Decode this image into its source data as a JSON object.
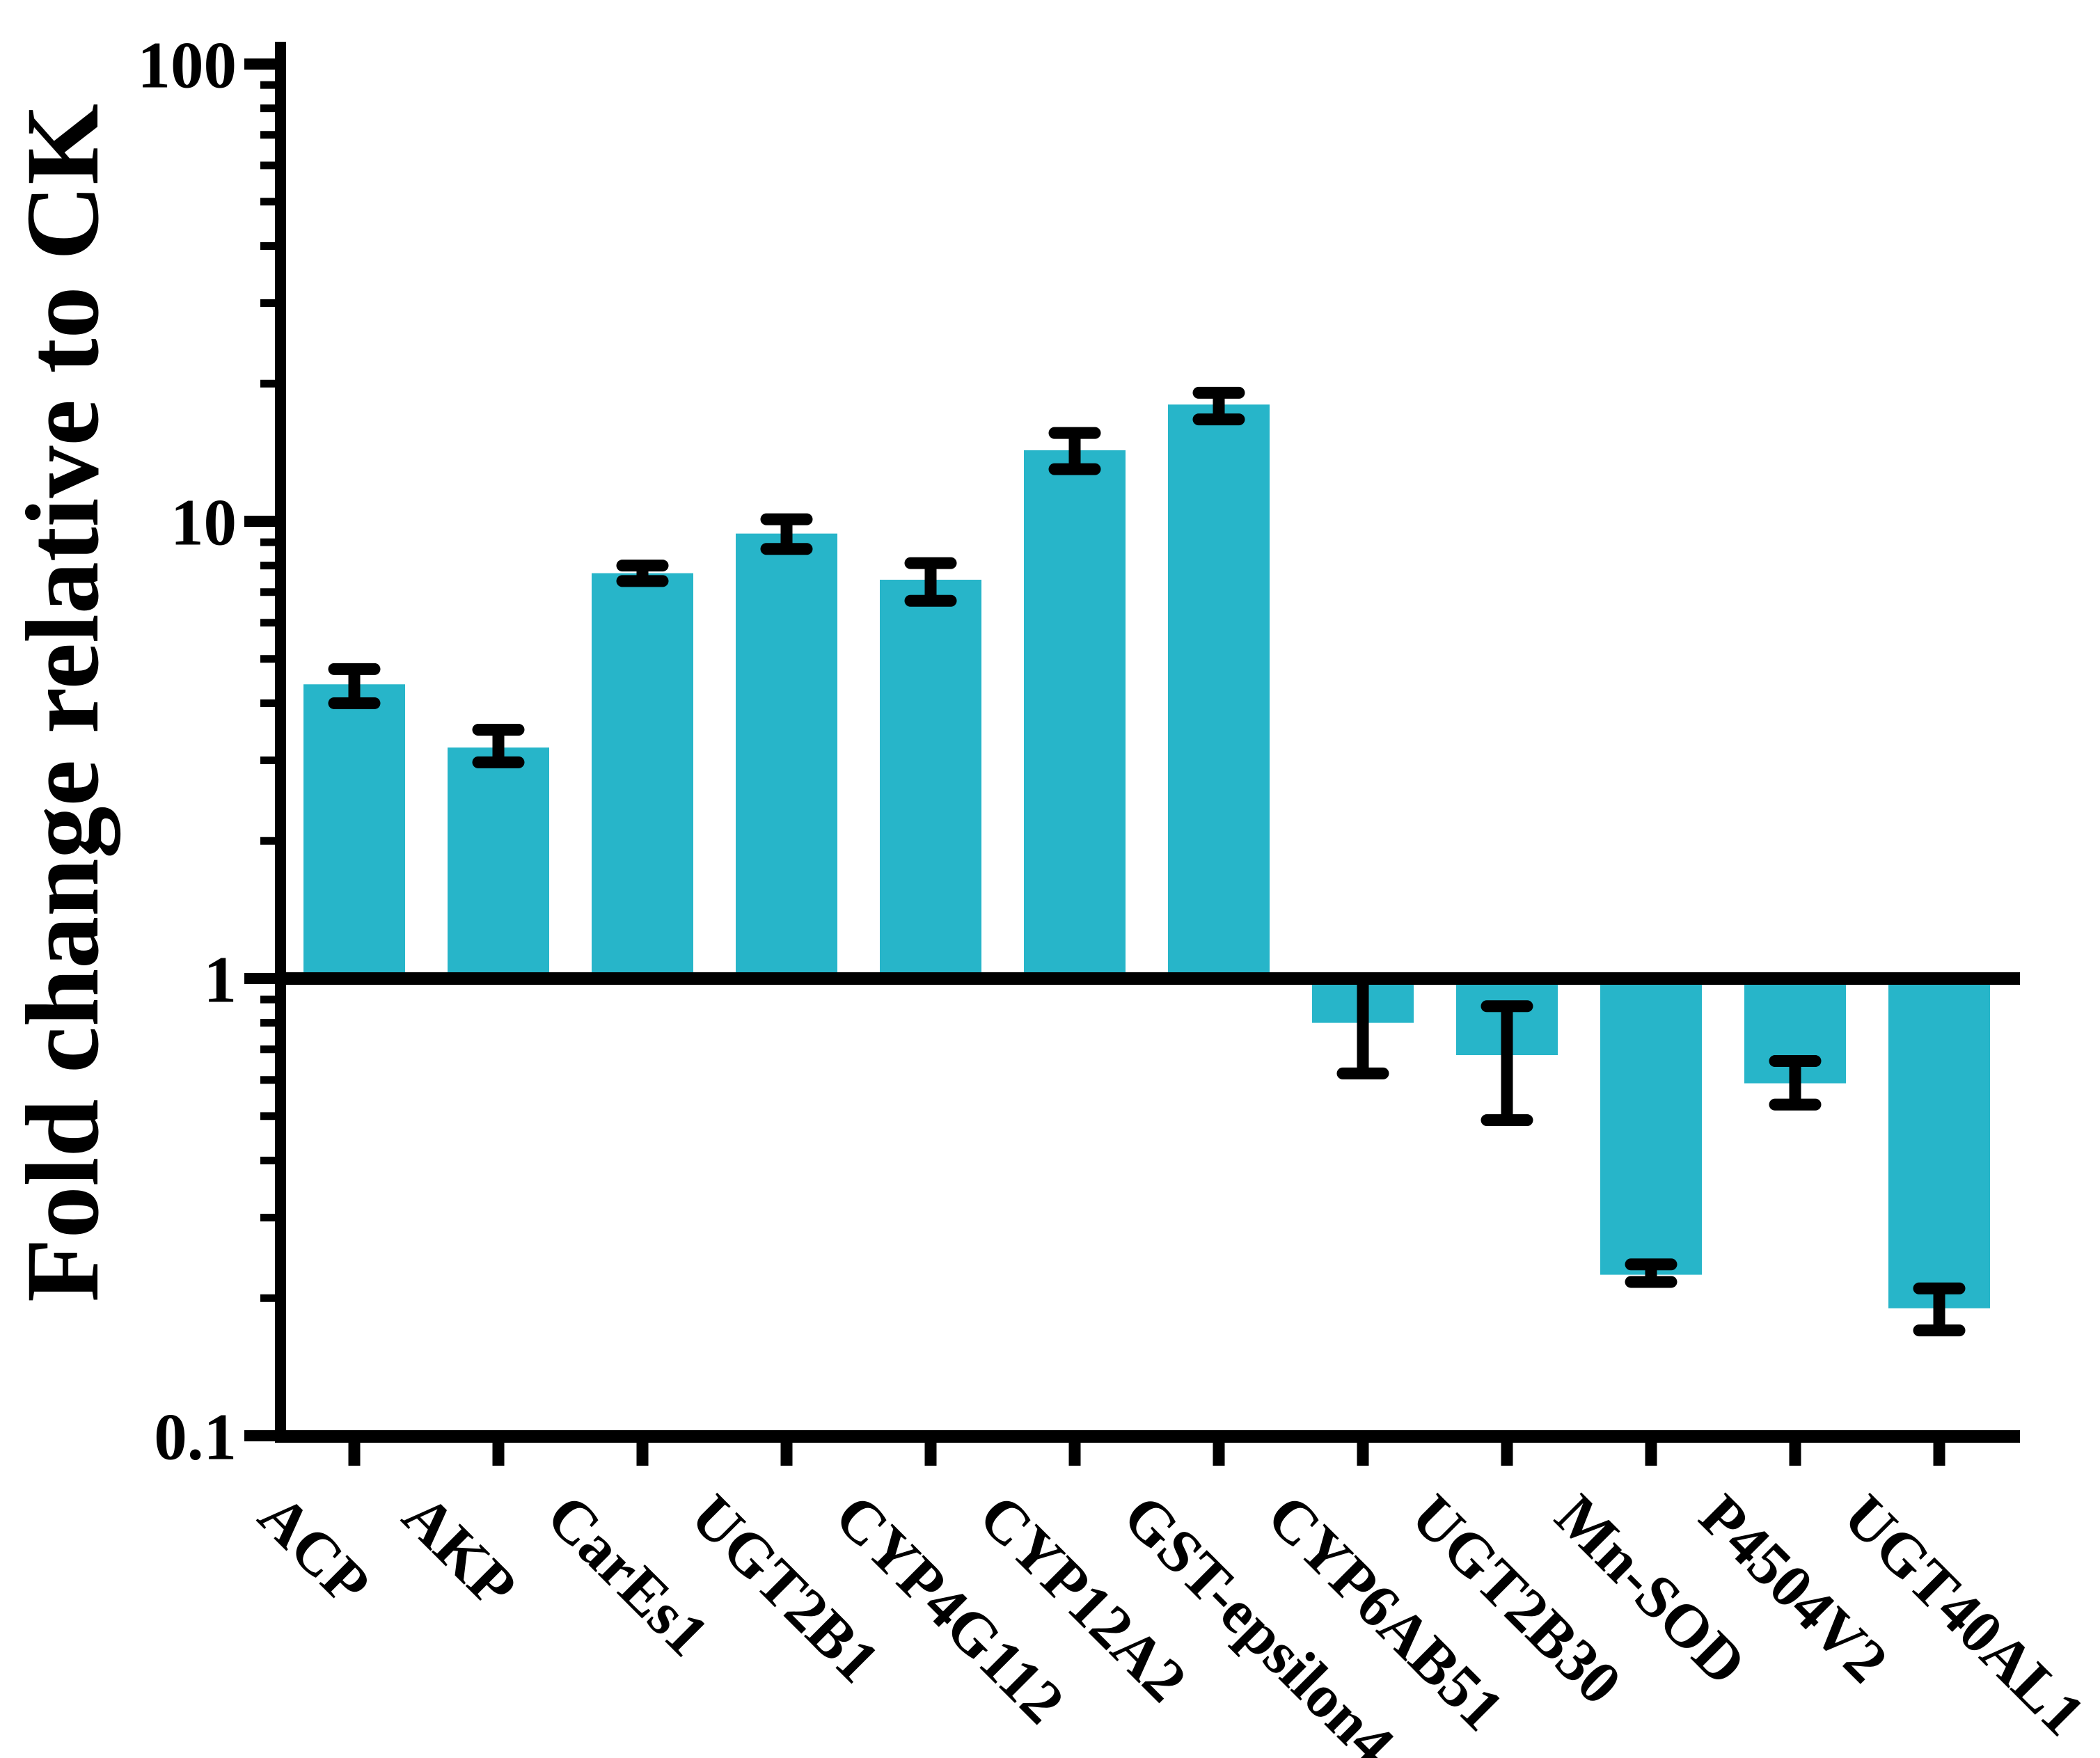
{
  "chart_data": {
    "type": "bar",
    "title": "",
    "xlabel": "",
    "ylabel": "Fold change relative to CK",
    "yscale": "log",
    "ylim": [
      0.1,
      100
    ],
    "baseline": 1,
    "grid": false,
    "legend": false,
    "bar_color": "#27b5c9",
    "axis_color": "#000000",
    "yticks": [
      {
        "label": "100",
        "value": 100
      },
      {
        "label": "10",
        "value": 10
      },
      {
        "label": "1",
        "value": 1
      },
      {
        "label": "0.1",
        "value": 0.1
      }
    ],
    "categories": [
      "ACP",
      "AKP",
      "CarEs1",
      "UGT2B1",
      "CYP4G112",
      "CYP12A2",
      "GST-epsilon4",
      "CYP6AB51",
      "UGT2B30",
      "Mn-SOD",
      "P4504V2",
      "UGT40AL1"
    ],
    "values": [
      4.4,
      3.2,
      7.7,
      9.4,
      7.45,
      14.3,
      18.0,
      0.8,
      0.68,
      0.225,
      0.59,
      0.19
    ],
    "error_high": [
      4.75,
      3.5,
      8.0,
      10.1,
      8.1,
      15.6,
      19.1,
      1.0,
      0.87,
      0.237,
      0.66,
      0.21
    ],
    "error_low": [
      4.0,
      2.97,
      7.4,
      8.7,
      6.7,
      13.0,
      16.7,
      0.62,
      0.49,
      0.217,
      0.53,
      0.17
    ]
  }
}
